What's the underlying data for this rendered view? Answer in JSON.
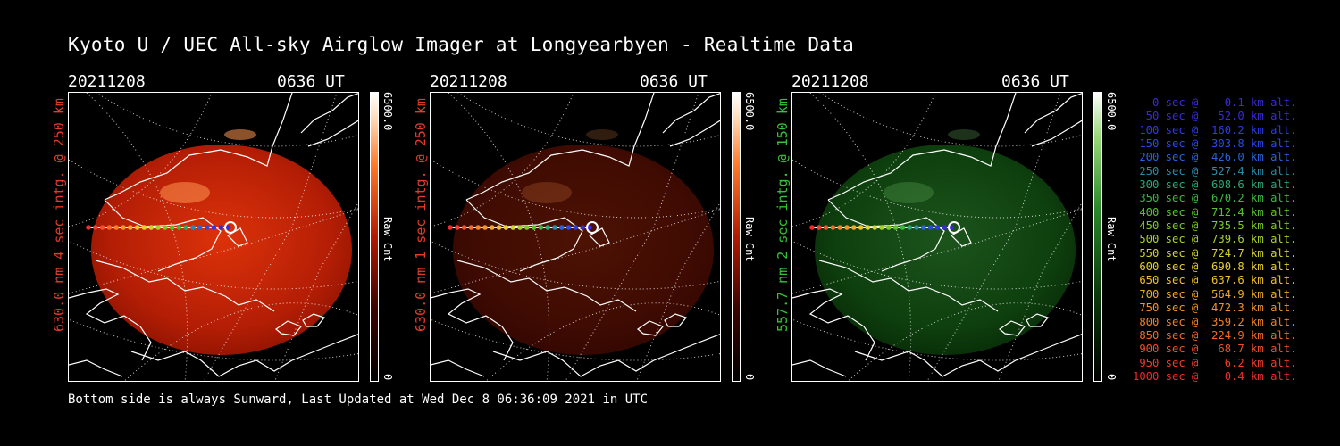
{
  "title": "Kyoto U / UEC All-sky Airglow Imager at Longyearbyen - Realtime Data",
  "panels": [
    {
      "date": "20211208",
      "time": "0636 UT",
      "ylabel": "630.0 nm 4 sec intg. @ 250 km",
      "label_color": "#e23b2b",
      "cb_max": "6500.0",
      "cb_label": "Raw Cnt",
      "cb_min": "0",
      "tint": "red",
      "brightness": 1.0
    },
    {
      "date": "20211208",
      "time": "0636 UT",
      "ylabel": "630.0 nm 1 sec intg. @ 250 km",
      "label_color": "#e23b2b",
      "cb_max": "6500.0",
      "cb_label": "Raw Cnt",
      "cb_min": "0",
      "tint": "red",
      "brightness": 0.35
    },
    {
      "date": "20211208",
      "time": "0636 UT",
      "ylabel": "557.7 nm 2 sec intg. @ 150 km",
      "label_color": "#34c23a",
      "cb_max": "6500.0",
      "cb_label": "Raw Cnt",
      "cb_min": "0",
      "tint": "green",
      "brightness": 0.7
    }
  ],
  "legend": [
    {
      "text": "   0 sec @    0.1 km alt.",
      "color": "#3a2ad8"
    },
    {
      "text": "  50 sec @   52.0 km alt.",
      "color": "#3a2ad8"
    },
    {
      "text": " 100 sec @  160.2 km alt.",
      "color": "#2c3ce0"
    },
    {
      "text": " 150 sec @  303.8 km alt.",
      "color": "#2a4ae0"
    },
    {
      "text": " 200 sec @  426.0 km alt.",
      "color": "#2a62d8"
    },
    {
      "text": " 250 sec @  527.4 km alt.",
      "color": "#2a8aa8"
    },
    {
      "text": " 300 sec @  608.6 km alt.",
      "color": "#2aa878"
    },
    {
      "text": " 350 sec @  670.2 km alt.",
      "color": "#3ab840"
    },
    {
      "text": " 400 sec @  712.4 km alt.",
      "color": "#5ac22a"
    },
    {
      "text": " 450 sec @  735.5 km alt.",
      "color": "#7ec82a"
    },
    {
      "text": " 500 sec @  739.6 km alt.",
      "color": "#a8d02a"
    },
    {
      "text": " 550 sec @  724.7 km alt.",
      "color": "#d2d42a"
    },
    {
      "text": " 600 sec @  690.8 km alt.",
      "color": "#e8d02a"
    },
    {
      "text": " 650 sec @  637.6 km alt.",
      "color": "#f0c02a"
    },
    {
      "text": " 700 sec @  564.9 km alt.",
      "color": "#f0a82a"
    },
    {
      "text": " 750 sec @  472.3 km alt.",
      "color": "#f0942a"
    },
    {
      "text": " 800 sec @  359.2 km alt.",
      "color": "#f0802a"
    },
    {
      "text": " 850 sec @  224.9 km alt.",
      "color": "#f06a2a"
    },
    {
      "text": " 900 sec @   68.7 km alt.",
      "color": "#f0502a"
    },
    {
      "text": " 950 sec @    6.2 km alt.",
      "color": "#f03c2a"
    },
    {
      "text": "1000 sec @    0.4 km alt.",
      "color": "#f02a2a"
    }
  ],
  "footer": "Bottom side is always Sunward, Last Updated at Wed Dec  8 06:36:09 2021 in UTC"
}
